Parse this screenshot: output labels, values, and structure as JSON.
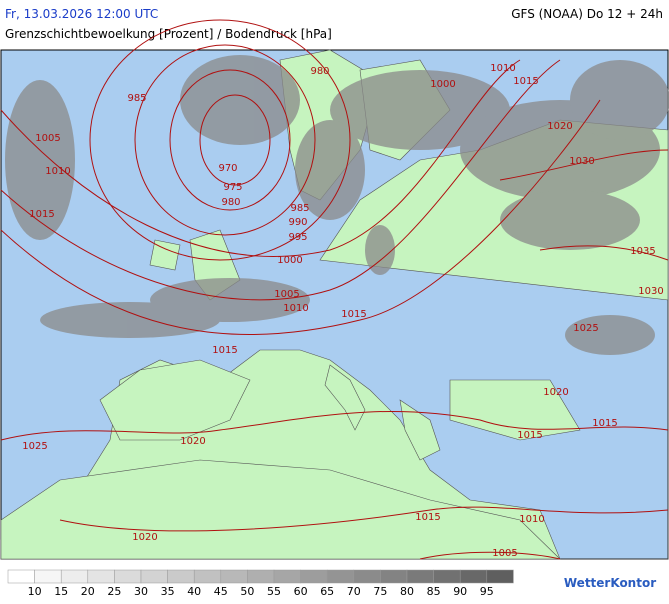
{
  "header": {
    "datetime": "Fr, 13.03.2026 12:00 UTC",
    "model": "GFS (NOAA) Do 12 + 24h",
    "title": "Grenzschichtbewoelkung [Prozent] / Bodendruck [hPa]"
  },
  "isobar_labels": [
    980,
    985,
    1000,
    1010,
    1015,
    1005,
    1010,
    1020,
    970,
    975,
    980,
    1030,
    985,
    990,
    1015,
    995,
    1035,
    1000,
    1005,
    1030,
    1010,
    1015,
    1025,
    1015,
    1020,
    1015,
    1015,
    1020,
    1025,
    1015,
    1010,
    1020,
    1005
  ],
  "legend": {
    "ticks": [
      10,
      15,
      20,
      25,
      30,
      35,
      40,
      45,
      50,
      55,
      60,
      65,
      70,
      75,
      80,
      85,
      90,
      95
    ]
  },
  "logo": "WetterKontor"
}
